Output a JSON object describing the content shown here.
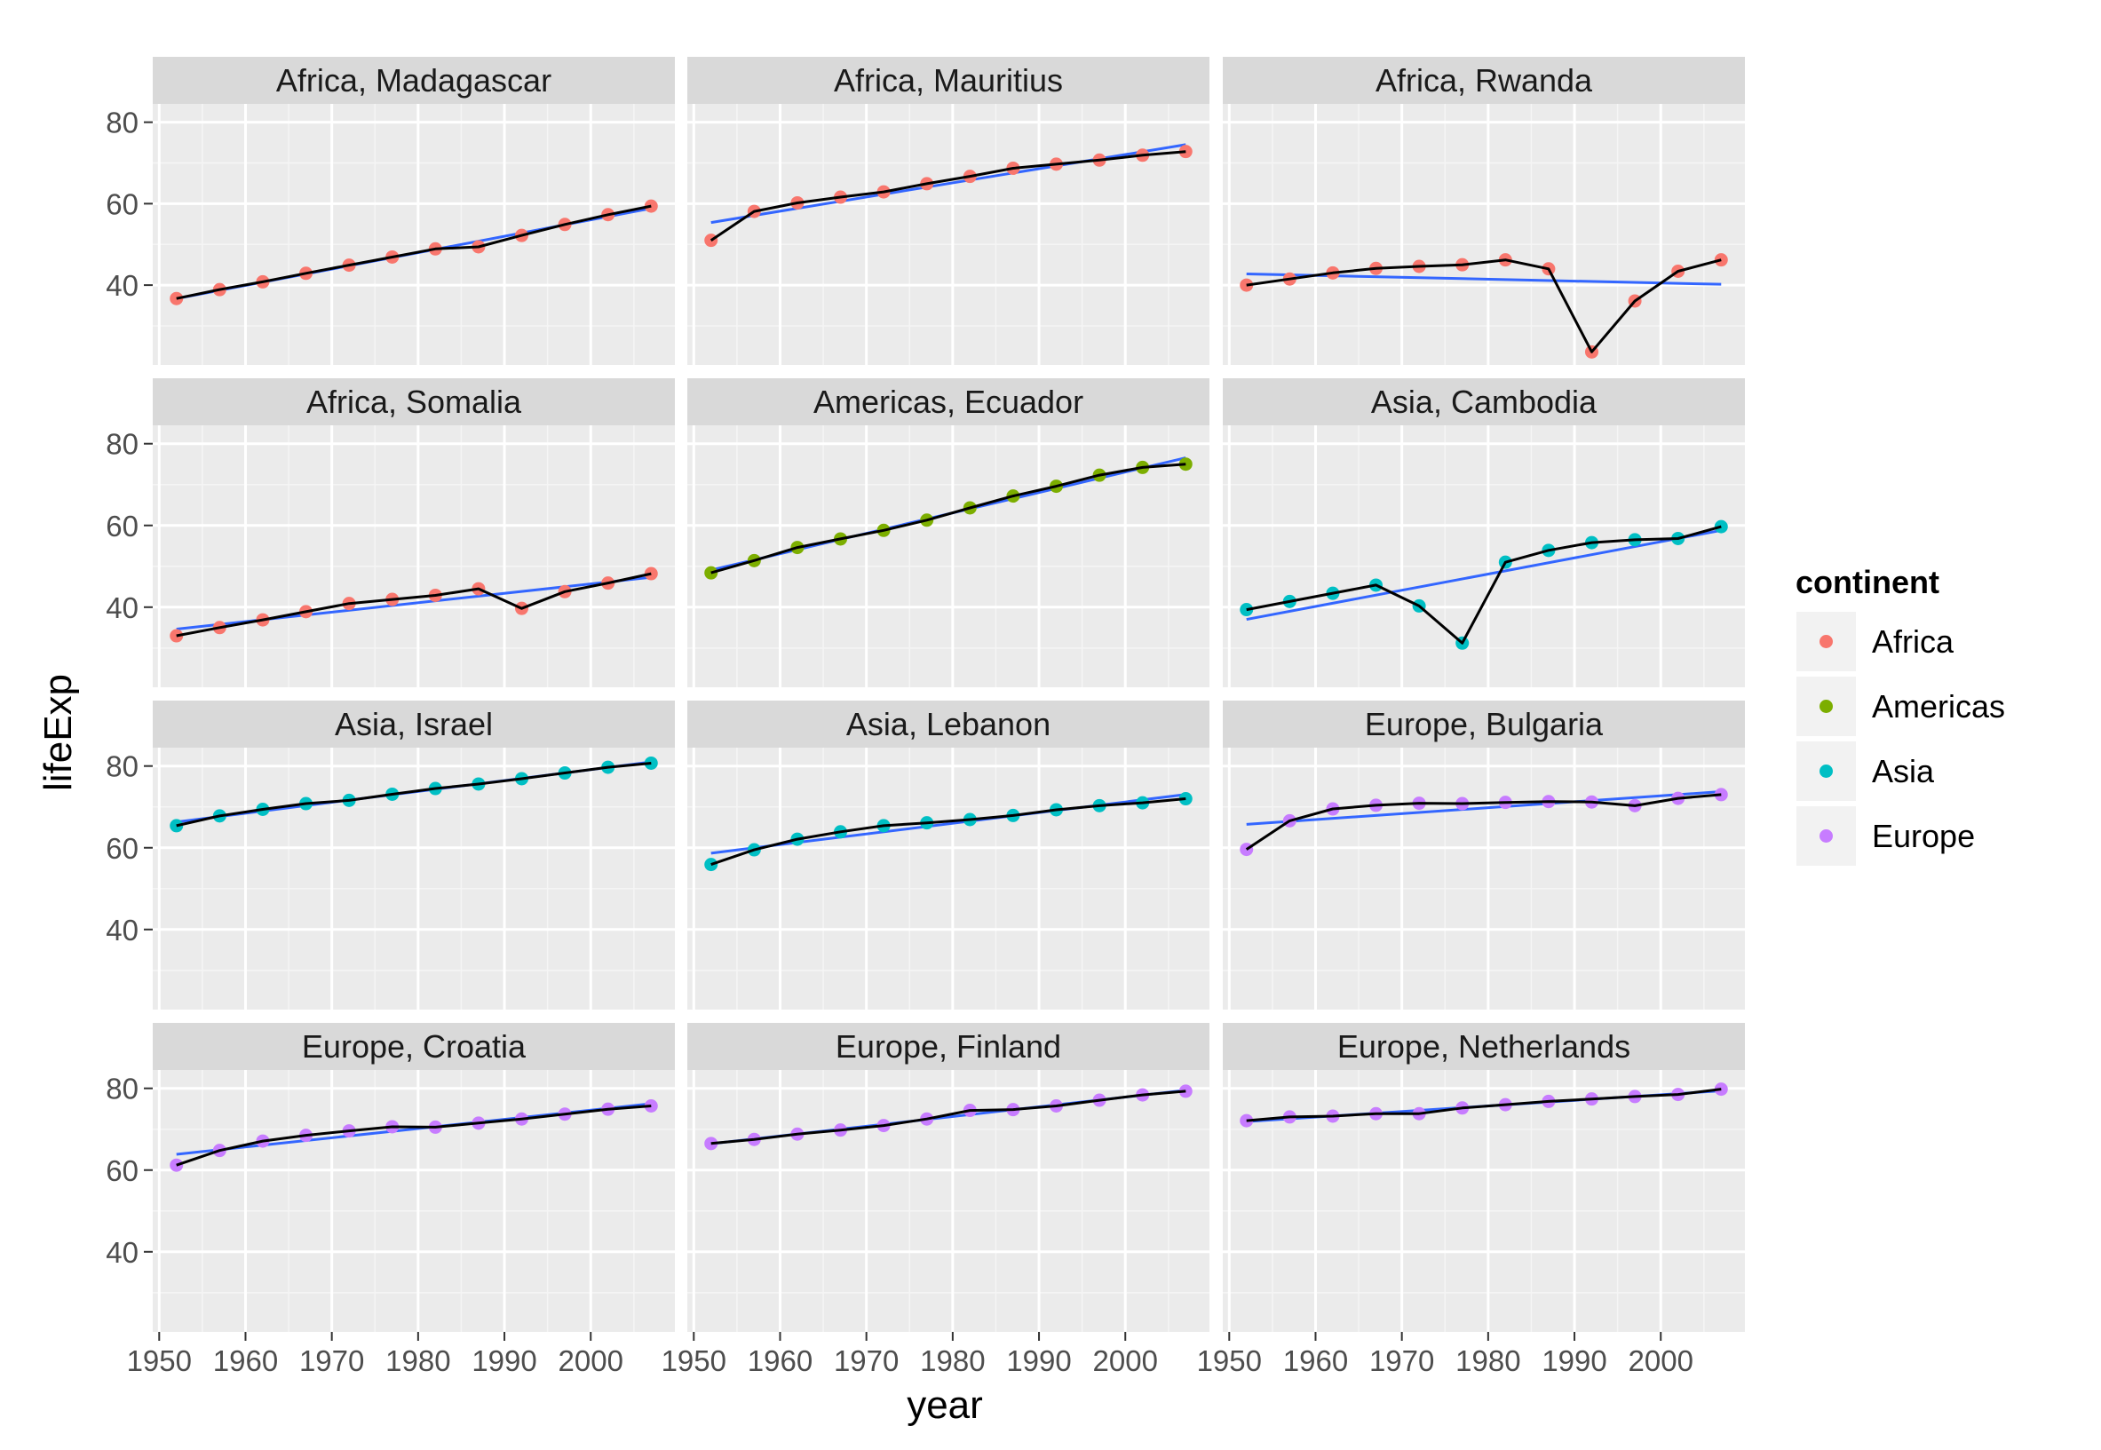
{
  "chart_data": {
    "type": "line",
    "facet_layout": "4x3 grid, one panel per country",
    "xlabel": "year",
    "ylabel": "lifeExp",
    "xlim": [
      1949.25,
      2009.75
    ],
    "ylim": [
      20.4,
      84.5
    ],
    "x_ticks": [
      1950,
      1960,
      1970,
      1980,
      1990,
      2000
    ],
    "y_ticks": [
      40,
      60,
      80
    ],
    "grid": true,
    "overlays": [
      "points",
      "connecting line (black)",
      "linear fit (blue)"
    ],
    "years": [
      1952,
      1957,
      1962,
      1967,
      1972,
      1977,
      1982,
      1987,
      1992,
      1997,
      2002,
      2007
    ],
    "colors": {
      "Africa": "#F8766D",
      "Americas": "#7CAE00",
      "Asia": "#00BFC4",
      "Europe": "#C77CFF",
      "line": "#000000",
      "fit": "#3366FF",
      "panel": "#EBEBEB",
      "strip": "#D9D9D9"
    },
    "legend": {
      "title": "continent",
      "position": "right",
      "entries": [
        "Africa",
        "Americas",
        "Asia",
        "Europe"
      ]
    },
    "panels": [
      {
        "label": "Africa, Madagascar",
        "continent": "Africa",
        "values": [
          36.7,
          38.9,
          40.8,
          42.9,
          44.9,
          46.9,
          48.9,
          49.4,
          52.2,
          54.9,
          57.3,
          59.4
        ]
      },
      {
        "label": "Africa, Mauritius",
        "continent": "Africa",
        "values": [
          51.0,
          58.1,
          60.2,
          61.6,
          62.9,
          64.9,
          66.7,
          68.7,
          69.7,
          70.7,
          71.9,
          72.8
        ]
      },
      {
        "label": "Africa, Rwanda",
        "continent": "Africa",
        "values": [
          40.0,
          41.5,
          43.0,
          44.1,
          44.6,
          45.0,
          46.2,
          44.0,
          23.6,
          36.1,
          43.4,
          46.2
        ]
      },
      {
        "label": "Africa, Somalia",
        "continent": "Africa",
        "values": [
          33.0,
          35.0,
          36.9,
          38.9,
          40.9,
          41.9,
          42.9,
          44.5,
          39.7,
          43.8,
          45.9,
          48.2
        ]
      },
      {
        "label": "Americas, Ecuador",
        "continent": "Americas",
        "values": [
          48.4,
          51.4,
          54.6,
          56.7,
          58.8,
          61.3,
          64.3,
          67.2,
          69.6,
          72.3,
          74.2,
          75.0
        ]
      },
      {
        "label": "Asia, Cambodia",
        "continent": "Asia",
        "values": [
          39.4,
          41.4,
          43.4,
          45.4,
          40.3,
          31.2,
          51.0,
          53.9,
          55.8,
          56.5,
          56.8,
          59.7
        ]
      },
      {
        "label": "Asia, Israel",
        "continent": "Asia",
        "values": [
          65.4,
          67.8,
          69.4,
          70.8,
          71.6,
          73.1,
          74.5,
          75.6,
          76.9,
          78.3,
          79.7,
          80.7
        ]
      },
      {
        "label": "Asia, Lebanon",
        "continent": "Asia",
        "values": [
          55.9,
          59.5,
          62.1,
          63.9,
          65.4,
          66.1,
          66.9,
          67.9,
          69.3,
          70.3,
          71.0,
          72.0
        ]
      },
      {
        "label": "Europe, Bulgaria",
        "continent": "Europe",
        "values": [
          59.6,
          66.6,
          69.5,
          70.4,
          70.9,
          70.8,
          71.1,
          71.3,
          71.2,
          70.3,
          72.1,
          73.0
        ]
      },
      {
        "label": "Europe, Croatia",
        "continent": "Europe",
        "values": [
          61.2,
          64.8,
          67.1,
          68.5,
          69.6,
          70.6,
          70.5,
          71.5,
          72.5,
          73.7,
          74.9,
          75.7
        ]
      },
      {
        "label": "Europe, Finland",
        "continent": "Europe",
        "values": [
          66.5,
          67.5,
          68.8,
          69.8,
          70.9,
          72.5,
          74.6,
          74.8,
          75.7,
          77.1,
          78.4,
          79.3
        ]
      },
      {
        "label": "Europe, Netherlands",
        "continent": "Europe",
        "values": [
          72.1,
          73.0,
          73.2,
          73.8,
          73.8,
          75.2,
          76.0,
          76.8,
          77.4,
          78.0,
          78.5,
          79.8
        ]
      }
    ]
  }
}
